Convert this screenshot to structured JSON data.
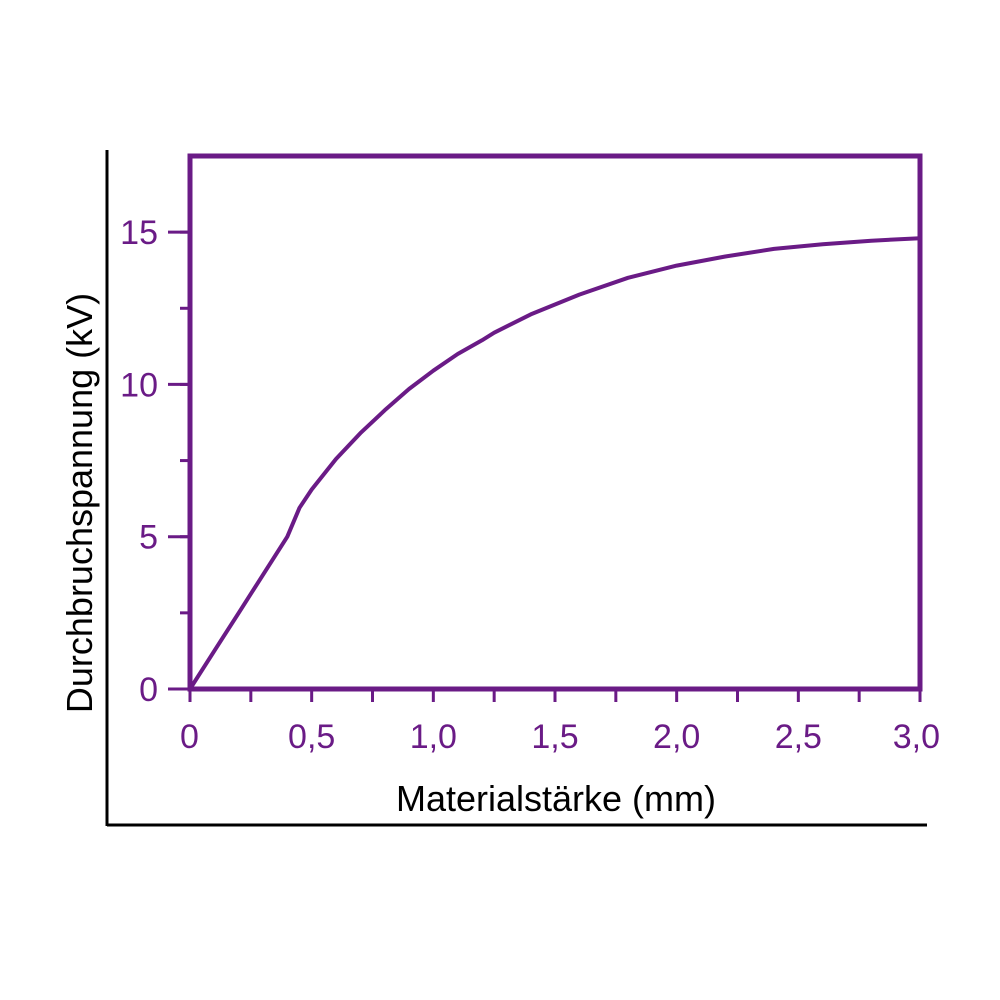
{
  "chart_data": {
    "type": "line",
    "xlabel": "Materialstärke (mm)",
    "ylabel": "Durchbruchspannung (kV)",
    "xlim": [
      0,
      3.0
    ],
    "ylim": [
      0,
      17.5
    ],
    "x_ticks": [
      0,
      0.5,
      1.0,
      1.5,
      2.0,
      2.5,
      3.0
    ],
    "x_tick_labels": [
      "0",
      "0,5",
      "1,0",
      "1,5",
      "2,0",
      "2,5",
      "3,0"
    ],
    "x_minor_step": 0.25,
    "y_ticks": [
      0,
      5,
      10,
      15
    ],
    "y_tick_labels": [
      "0",
      "5",
      "10",
      "15"
    ],
    "y_minor_step": 2.5,
    "grid": false,
    "legend": "none",
    "colors": {
      "accent": "#6a1b86",
      "frame": "#000000"
    },
    "series": [
      {
        "x": [
          0,
          0.1,
          0.2,
          0.3,
          0.4,
          0.45,
          0.5,
          0.6,
          0.7,
          0.8,
          0.9,
          1.0,
          1.1,
          1.2,
          1.25,
          1.4,
          1.6,
          1.8,
          2.0,
          2.2,
          2.4,
          2.6,
          2.8,
          3.0
        ],
        "values": [
          0,
          1.25,
          2.5,
          3.75,
          5.0,
          5.95,
          6.55,
          7.55,
          8.4,
          9.15,
          9.85,
          10.45,
          11.0,
          11.45,
          11.7,
          12.3,
          12.95,
          13.5,
          13.9,
          14.2,
          14.45,
          14.6,
          14.72,
          14.8
        ]
      }
    ]
  }
}
